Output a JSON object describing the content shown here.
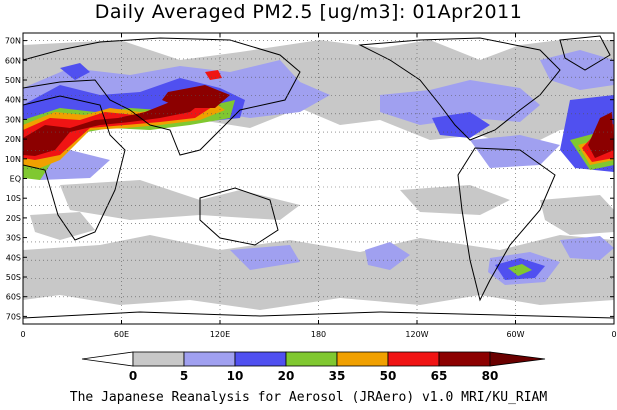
{
  "title": "Daily Averaged PM2.5 [ug/m3]: 01Apr2011",
  "credit": "The Japanese Reanalysis for Aerosol (JRAero) v1.0 MRI/KU_RIAM",
  "lat_labels": [
    "70N",
    "60N",
    "50N",
    "40N",
    "30N",
    "20N",
    "10N",
    "EQ",
    "10S",
    "20S",
    "30S",
    "40S",
    "50S",
    "60S",
    "70S"
  ],
  "lon_labels": [
    "0",
    "60E",
    "120E",
    "180",
    "120W",
    "60W",
    "0"
  ],
  "colorbar": {
    "thresholds": [
      "0",
      "5",
      "10",
      "20",
      "35",
      "50",
      "65",
      "80"
    ],
    "colors": [
      "#ffffff",
      "#c8c8c8",
      "#a0a0f0",
      "#5050f0",
      "#80c830",
      "#f0a000",
      "#f01414",
      "#8c0000",
      "#6a0000"
    ]
  }
}
